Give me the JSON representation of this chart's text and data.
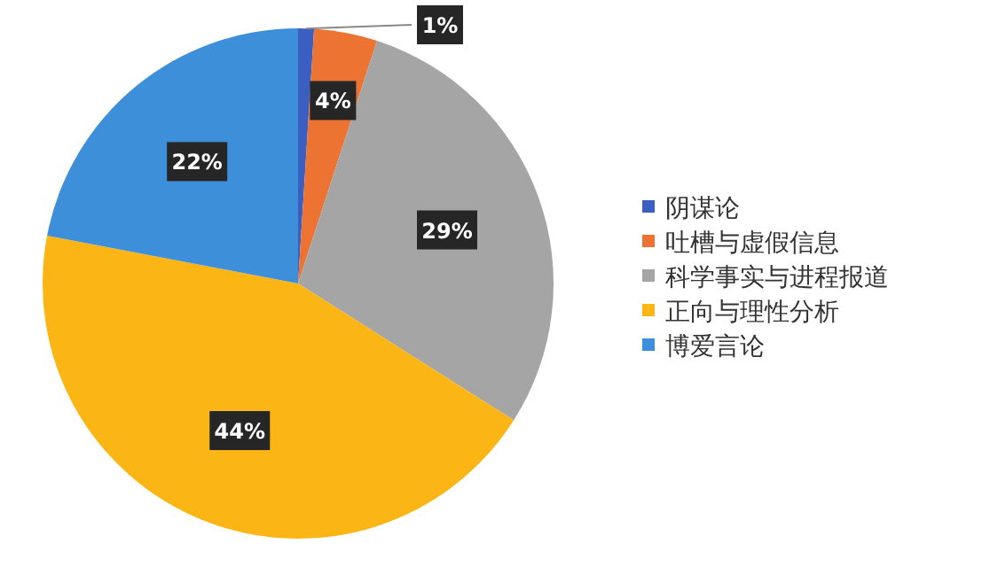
{
  "chart_data": {
    "type": "pie",
    "categories": [
      "阴谋论",
      "吐槽与虚假信息",
      "科学事实与进程报道",
      "正向与理性分析",
      "博爱言论"
    ],
    "values": [
      1,
      4,
      29,
      44,
      22
    ],
    "colors": [
      "#3a5fc0",
      "#ec7331",
      "#a5a5a5",
      "#fbb616",
      "#3e8fd9"
    ],
    "value_labels": [
      "1%",
      "4%",
      "29%",
      "44%",
      "22%"
    ],
    "legend": "right"
  }
}
